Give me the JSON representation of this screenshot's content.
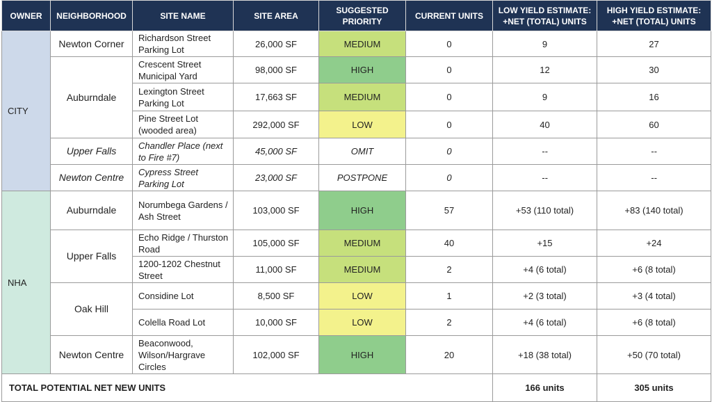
{
  "table": {
    "headers": [
      "OWNER",
      "NEIGHBORHOOD",
      "SITE NAME",
      "SITE AREA",
      "SUGGESTED PRIORITY",
      "CURRENT UNITS",
      "LOW YIELD ESTIMATE: +NET (TOTAL) UNITS",
      "HIGH YIELD ESTIMATE: +NET (TOTAL) UNITS"
    ],
    "groups": [
      {
        "owner": "CITY",
        "color": "#cdd9ea",
        "neighborhoods": [
          {
            "name": "Newton Corner",
            "italic": false,
            "sites": [
              {
                "name": "Richardson Street Parking Lot",
                "area": "26,000 SF",
                "priority": "MEDIUM",
                "priority_color": "#c6e07c",
                "current": 0,
                "low": 9,
                "high": 27
              }
            ]
          },
          {
            "name": "Auburndale",
            "italic": false,
            "sites": [
              {
                "name": "Crescent Street Municipal Yard",
                "area": "98,000 SF",
                "priority": "HIGH",
                "priority_color": "#8fcd8c",
                "current": 0,
                "low": 12,
                "high": 30
              },
              {
                "name": "Lexington Street Parking Lot",
                "area": "17,663 SF",
                "priority": "MEDIUM",
                "priority_color": "#c6e07c",
                "current": 0,
                "low": 9,
                "high": 16
              },
              {
                "name": "Pine Street Lot (wooded area)",
                "area": "292,000 SF",
                "priority": "LOW",
                "priority_color": "#f3f28c",
                "current": 0,
                "low": 40,
                "high": 60
              }
            ]
          },
          {
            "name": "Upper Falls",
            "italic": true,
            "sites": [
              {
                "name": "Chandler Place (next to Fire #7)",
                "area": "45,000 SF",
                "priority": "OMIT",
                "priority_color": null,
                "current": 0,
                "low": "--",
                "high": "--"
              }
            ]
          },
          {
            "name": "Newton Centre",
            "italic": true,
            "sites": [
              {
                "name": "Cypress Street Parking Lot",
                "area": "23,000 SF",
                "priority": "POSTPONE",
                "priority_color": null,
                "current": 0,
                "low": "--",
                "high": "--"
              }
            ]
          }
        ]
      },
      {
        "owner": "NHA",
        "color": "#cfeadf",
        "neighborhoods": [
          {
            "name": "Auburndale",
            "italic": false,
            "sites": [
              {
                "name": "Norumbega Gardens / Ash Street",
                "area": "103,000 SF",
                "priority": "HIGH",
                "priority_color": "#8fcd8c",
                "current": 57,
                "low": "+53 (110 total)",
                "high": "+83 (140 total)"
              }
            ]
          },
          {
            "name": "Upper Falls",
            "italic": false,
            "sites": [
              {
                "name": "Echo Ridge / Thurston Road",
                "area": "105,000 SF",
                "priority": "MEDIUM",
                "priority_color": "#c6e07c",
                "current": 40,
                "low": "+15",
                "high": "+24"
              },
              {
                "name": "1200-1202 Chestnut Street",
                "area": "11,000 SF",
                "priority": "MEDIUM",
                "priority_color": "#c6e07c",
                "current": 2,
                "low": "+4 (6 total)",
                "high": "+6 (8 total)"
              }
            ]
          },
          {
            "name": "Oak Hill",
            "italic": false,
            "sites": [
              {
                "name": "Considine Lot",
                "area": "8,500 SF",
                "priority": "LOW",
                "priority_color": "#f3f28c",
                "current": 1,
                "low": "+2 (3 total)",
                "high": "+3 (4 total)"
              },
              {
                "name": "Colella Road Lot",
                "area": "10,000 SF",
                "priority": "LOW",
                "priority_color": "#f3f28c",
                "current": 2,
                "low": "+4 (6 total)",
                "high": "+6 (8 total)"
              }
            ]
          },
          {
            "name": "Newton Centre",
            "italic": false,
            "sites": [
              {
                "name": "Beaconwood, Wilson/Hargrave Circles",
                "area": "102,000 SF",
                "priority": "HIGH",
                "priority_color": "#8fcd8c",
                "current": 20,
                "low": "+18 (38 total)",
                "high": "+50 (70 total)"
              }
            ]
          }
        ]
      }
    ],
    "total": {
      "label": "TOTAL POTENTIAL NET NEW UNITS",
      "low": "166 units",
      "high": "305 units"
    }
  }
}
